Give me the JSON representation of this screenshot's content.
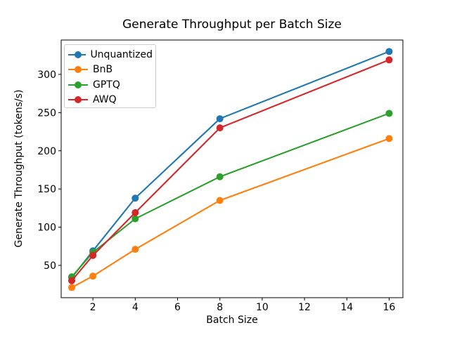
{
  "chart_data": {
    "type": "line",
    "title": "Generate Throughput per Batch Size",
    "xlabel": "Batch Size",
    "ylabel": "Generate Throughput (tokens/s)",
    "x": [
      1,
      2,
      4,
      8,
      16
    ],
    "series": [
      {
        "name": "Unquantized",
        "color": "#1f77b4",
        "values": [
          34,
          69,
          138,
          242,
          330
        ]
      },
      {
        "name": "BnB",
        "color": "#ff7f0e",
        "values": [
          21,
          36,
          71,
          135,
          216
        ]
      },
      {
        "name": "GPTQ",
        "color": "#2ca02c",
        "values": [
          35,
          67,
          111,
          166,
          249
        ]
      },
      {
        "name": "AWQ",
        "color": "#d62728",
        "values": [
          30,
          63,
          119,
          230,
          319
        ]
      }
    ],
    "xticks": [
      2,
      4,
      6,
      8,
      10,
      12,
      14,
      16
    ],
    "yticks": [
      50,
      100,
      150,
      200,
      250,
      300
    ],
    "xlim": [
      0.5,
      16.65
    ],
    "ylim": [
      7.7,
      345
    ],
    "grid": false,
    "legend_position": "upper left",
    "marker": "o",
    "axis_color": "#000000",
    "background": "#ffffff"
  }
}
